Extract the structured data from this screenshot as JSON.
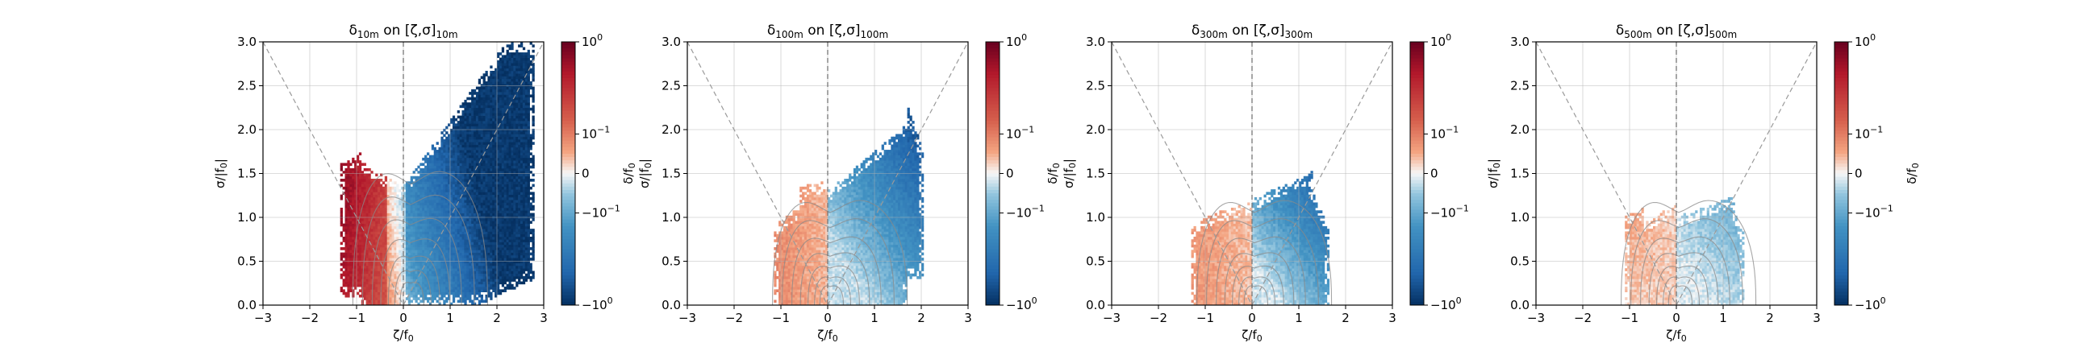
{
  "chart_data": [
    {
      "type": "heatmap",
      "title_main": "δ",
      "title_sub": "10m",
      "title_mid": " on [ζ,σ]",
      "title_sub2": "10m",
      "xlabel": "ζ/f",
      "xlabel_sub": "0",
      "ylabel": "σ/|f",
      "ylabel_sub": "0",
      "ylabel_suffix": "|",
      "xlim": [
        -3,
        3
      ],
      "ylim": [
        0,
        3
      ],
      "xticks": [
        "−3",
        "−2",
        "−1",
        "0",
        "1",
        "2",
        "3"
      ],
      "yticks": [
        "0.0",
        "0.5",
        "1.0",
        "1.5",
        "2.0",
        "2.5",
        "3.0"
      ],
      "cbar_ticks": [
        "10",
        "10",
        "0",
        "−10",
        "−10"
      ],
      "cbar_exps": [
        "0",
        "−1",
        "",
        "−1",
        "0"
      ],
      "cbar_label": "",
      "data_extent": {
        "zeta_min": -1.35,
        "zeta_max": 2.75,
        "sigma_min": 0.0,
        "sigma_max": 3.0
      },
      "sign_pattern": "positive (red) for ζ<-0.4, negative (blue) for ζ>0",
      "grid": true
    },
    {
      "type": "heatmap",
      "title_main": "δ",
      "title_sub": "100m",
      "title_mid": " on [ζ,σ]",
      "title_sub2": "100m",
      "xlabel": "ζ/f",
      "xlabel_sub": "0",
      "ylabel": "σ/|f",
      "ylabel_sub": "0",
      "ylabel_suffix": "|",
      "xlim": [
        -3,
        3
      ],
      "ylim": [
        0,
        3
      ],
      "xticks": [
        "−3",
        "−2",
        "−1",
        "0",
        "1",
        "2",
        "3"
      ],
      "yticks": [
        "0.0",
        "0.5",
        "1.0",
        "1.5",
        "2.0",
        "2.5",
        "3.0"
      ],
      "cbar_ticks": [
        "10",
        "10",
        "0",
        "−10",
        "−10"
      ],
      "cbar_exps": [
        "0",
        "−1",
        "",
        "−1",
        "0"
      ],
      "cbar_label": "δ/f",
      "cbar_label_sub": "0",
      "data_extent": {
        "zeta_min": -1.15,
        "zeta_max": 2.1,
        "sigma_min": 0.0,
        "sigma_max": 2.3
      },
      "sign_pattern": "weak positive for ζ<0, negative for ζ>0",
      "grid": true
    },
    {
      "type": "heatmap",
      "title_main": "δ",
      "title_sub": "300m",
      "title_mid": " on [ζ,σ]",
      "title_sub2": "300m",
      "xlabel": "ζ/f",
      "xlabel_sub": "0",
      "ylabel": "σ/|f",
      "ylabel_sub": "0",
      "ylabel_suffix": "|",
      "xlim": [
        -3,
        3
      ],
      "ylim": [
        0,
        3
      ],
      "xticks": [
        "−3",
        "−2",
        "−1",
        "0",
        "1",
        "2",
        "3"
      ],
      "yticks": [
        "0.0",
        "0.5",
        "1.0",
        "1.5",
        "2.0",
        "2.5",
        "3.0"
      ],
      "cbar_ticks": [
        "10",
        "10",
        "0",
        "−10",
        "−10"
      ],
      "cbar_exps": [
        "0",
        "−1",
        "",
        "−1",
        "0"
      ],
      "cbar_label": "δ/f",
      "cbar_label_sub": "0",
      "data_extent": {
        "zeta_min": -1.3,
        "zeta_max": 1.6,
        "sigma_min": 0.0,
        "sigma_max": 1.5
      },
      "sign_pattern": "weak positive for ζ<0, negative for ζ>0",
      "grid": true
    },
    {
      "type": "heatmap",
      "title_main": "δ",
      "title_sub": "500m",
      "title_mid": " on [ζ,σ]",
      "title_sub2": "500m",
      "xlabel": "ζ/f",
      "xlabel_sub": "0",
      "ylabel": "σ/|f",
      "ylabel_sub": "0",
      "ylabel_suffix": "|",
      "xlim": [
        -3,
        3
      ],
      "ylim": [
        0,
        3
      ],
      "xticks": [
        "−3",
        "−2",
        "−1",
        "0",
        "1",
        "2",
        "3"
      ],
      "yticks": [
        "0.0",
        "0.5",
        "1.0",
        "1.5",
        "2.0",
        "2.5",
        "3.0"
      ],
      "cbar_ticks": [
        "10",
        "10",
        "0",
        "−10",
        "−10"
      ],
      "cbar_exps": [
        "0",
        "−1",
        "",
        "−1",
        "0"
      ],
      "cbar_label": "δ/f",
      "cbar_label_sub": "0",
      "data_extent": {
        "zeta_min": -1.1,
        "zeta_max": 1.45,
        "sigma_min": 0.0,
        "sigma_max": 1.25
      },
      "sign_pattern": "weak positive for ζ<0, weak negative for ζ>0",
      "grid": true
    }
  ],
  "colormap": {
    "name": "RdBu_r",
    "positive_end": "#67001f",
    "negative_end": "#053061",
    "zero": "#f7f7f7"
  },
  "contour_color": "#8a8a8a",
  "guide_line_color": "#9a9a9a"
}
